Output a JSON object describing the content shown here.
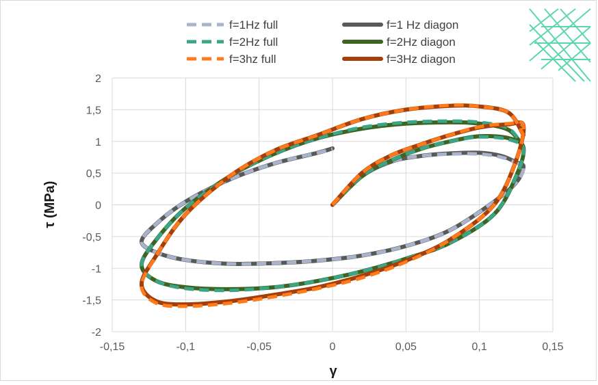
{
  "chart_data": {
    "type": "line",
    "title": "",
    "xlabel": "γ",
    "ylabel": "τ (MPa)",
    "xlim": [
      -0.15,
      0.15
    ],
    "ylim": [
      -2,
      2
    ],
    "x_ticks": [
      "-0,15",
      "-0,1",
      "-0,05",
      "0",
      "0,05",
      "0,1",
      "0,15"
    ],
    "y_ticks": [
      "2",
      "1,5",
      "1",
      "0,5",
      "0",
      "-0,5",
      "-1",
      "-1,5",
      "-2"
    ],
    "grid": "vertical and horizontal",
    "legend_position": "top",
    "series": [
      {
        "name": "f=1Hz full",
        "style": "dashed",
        "color": "#a9b4cc",
        "x": [
          0,
          0.02,
          0.04,
          0.06,
          0.08,
          0.1,
          0.115,
          0.125,
          0.13,
          0.125,
          0.11,
          0.08,
          0.05,
          0.02,
          -0.01,
          -0.04,
          -0.07,
          -0.1,
          -0.12,
          -0.13,
          -0.12,
          -0.1,
          -0.07,
          -0.04,
          -0.01,
          0
        ],
        "y": [
          0,
          0.45,
          0.68,
          0.77,
          0.8,
          0.8,
          0.75,
          0.66,
          0.58,
          0.35,
          0.05,
          -0.4,
          -0.65,
          -0.8,
          -0.88,
          -0.92,
          -0.93,
          -0.87,
          -0.75,
          -0.58,
          -0.3,
          0.05,
          0.4,
          0.65,
          0.82,
          0.88
        ]
      },
      {
        "name": "f=2Hz full",
        "style": "dashed",
        "color": "#3aa687",
        "x": [
          0,
          0.02,
          0.04,
          0.06,
          0.08,
          0.1,
          0.12,
          0.13,
          0.125,
          0.11,
          0.08,
          0.05,
          0.02,
          -0.01,
          -0.04,
          -0.07,
          -0.1,
          -0.12,
          -0.13,
          -0.12,
          -0.1,
          -0.07,
          -0.04,
          -0.01,
          0.02,
          0.05,
          0.08,
          0.1,
          0.12,
          0.13
        ],
        "y": [
          0,
          0.45,
          0.7,
          0.88,
          1.0,
          1.07,
          1.03,
          0.88,
          0.45,
          -0.15,
          -0.6,
          -0.85,
          -1.05,
          -1.2,
          -1.3,
          -1.35,
          -1.32,
          -1.2,
          -0.95,
          -0.55,
          -0.05,
          0.45,
          0.8,
          1.05,
          1.22,
          1.3,
          1.32,
          1.3,
          1.2,
          0.9
        ]
      },
      {
        "name": "f=3hz full",
        "style": "dashed",
        "color": "#ff7a1a",
        "x": [
          0,
          0.02,
          0.04,
          0.06,
          0.08,
          0.1,
          0.12,
          0.13,
          0.125,
          0.11,
          0.08,
          0.05,
          0.02,
          -0.01,
          -0.04,
          -0.07,
          -0.1,
          -0.12,
          -0.13,
          -0.12,
          -0.1,
          -0.07,
          -0.04,
          -0.01,
          0.02,
          0.05,
          0.08,
          0.1,
          0.12,
          0.13
        ],
        "y": [
          0,
          0.5,
          0.78,
          0.95,
          1.1,
          1.23,
          1.28,
          1.25,
          0.7,
          0.0,
          -0.55,
          -0.9,
          -1.15,
          -1.32,
          -1.45,
          -1.55,
          -1.6,
          -1.55,
          -1.28,
          -0.8,
          -0.15,
          0.45,
          0.85,
          1.1,
          1.35,
          1.5,
          1.57,
          1.55,
          1.45,
          1.1
        ]
      },
      {
        "name": "f=1 Hz diagon",
        "style": "solid",
        "color": "#595959",
        "x": [
          0,
          0.02,
          0.04,
          0.06,
          0.08,
          0.1,
          0.115,
          0.125,
          0.13,
          0.125,
          0.11,
          0.08,
          0.05,
          0.02,
          -0.01,
          -0.04,
          -0.07,
          -0.1,
          -0.12,
          -0.13,
          -0.12,
          -0.1,
          -0.07,
          -0.04,
          -0.01,
          0
        ],
        "y": [
          0,
          0.45,
          0.68,
          0.77,
          0.81,
          0.82,
          0.77,
          0.67,
          0.6,
          0.35,
          0.05,
          -0.4,
          -0.65,
          -0.8,
          -0.88,
          -0.92,
          -0.93,
          -0.87,
          -0.75,
          -0.58,
          -0.3,
          0.05,
          0.4,
          0.65,
          0.82,
          0.89
        ]
      },
      {
        "name": "f=2Hz diagon",
        "style": "solid",
        "color": "#3f6322",
        "x": [
          0,
          0.02,
          0.04,
          0.06,
          0.08,
          0.1,
          0.12,
          0.13,
          0.125,
          0.11,
          0.08,
          0.05,
          0.02,
          -0.01,
          -0.04,
          -0.07,
          -0.1,
          -0.12,
          -0.13,
          -0.12,
          -0.1,
          -0.07,
          -0.04,
          -0.01,
          0.02,
          0.05,
          0.08,
          0.1,
          0.12,
          0.13
        ],
        "y": [
          0,
          0.45,
          0.7,
          0.88,
          1.0,
          1.08,
          1.05,
          0.9,
          0.45,
          -0.15,
          -0.6,
          -0.85,
          -1.05,
          -1.2,
          -1.3,
          -1.33,
          -1.3,
          -1.2,
          -0.95,
          -0.55,
          -0.05,
          0.45,
          0.8,
          1.05,
          1.2,
          1.28,
          1.3,
          1.28,
          1.18,
          0.9
        ]
      },
      {
        "name": "f=3Hz diagon",
        "style": "solid",
        "color": "#a33f0b",
        "x": [
          0,
          0.02,
          0.04,
          0.06,
          0.08,
          0.1,
          0.12,
          0.13,
          0.125,
          0.11,
          0.08,
          0.05,
          0.02,
          -0.01,
          -0.04,
          -0.07,
          -0.1,
          -0.12,
          -0.13,
          -0.12,
          -0.1,
          -0.07,
          -0.04,
          -0.01,
          0.02,
          0.05,
          0.08,
          0.1,
          0.12,
          0.13
        ],
        "y": [
          0,
          0.5,
          0.78,
          0.95,
          1.1,
          1.22,
          1.27,
          1.25,
          0.7,
          0.0,
          -0.55,
          -0.88,
          -1.12,
          -1.3,
          -1.42,
          -1.52,
          -1.57,
          -1.52,
          -1.25,
          -0.8,
          -0.15,
          0.45,
          0.85,
          1.1,
          1.35,
          1.5,
          1.56,
          1.55,
          1.45,
          1.1
        ]
      }
    ]
  },
  "lattice_icon": {
    "icon": "lattice-grid-icon",
    "color": "#5bd6b0"
  }
}
